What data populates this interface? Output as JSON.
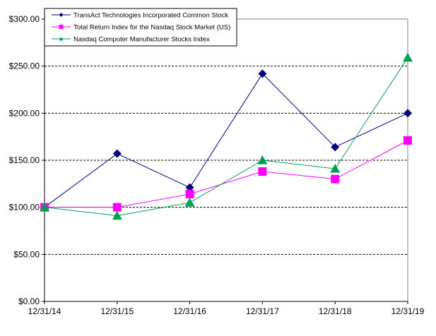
{
  "chart_data": {
    "type": "line",
    "title": "",
    "xlabel": "",
    "ylabel": "",
    "categories": [
      "12/31/14",
      "12/31/15",
      "12/31/16",
      "12/31/17",
      "12/31/18",
      "12/31/19"
    ],
    "ylim": [
      0,
      300
    ],
    "yticks": [
      0,
      50,
      100,
      150,
      200,
      250,
      300
    ],
    "ytick_labels": [
      "$0.00",
      "$50.00",
      "$100.00",
      "$150.00",
      "$200.00",
      "$250.00",
      "$300.00"
    ],
    "grid": "horizontal dashed",
    "legend_position": "top-left",
    "series": [
      {
        "name": "TransAct Technologies Incorporated Common Stock",
        "color": "#000080",
        "marker": "diamond",
        "values": [
          100,
          157,
          121,
          242,
          164,
          200
        ]
      },
      {
        "name": "Total Return Index for the Nasdaq Stock Market (US)",
        "color": "#FF00FF",
        "marker": "square",
        "values": [
          100,
          100,
          114,
          138,
          130,
          171
        ]
      },
      {
        "name": "Nasdaq Computer Manufacturer Stocks Index",
        "color": "#00A050",
        "marker": "triangle",
        "values": [
          100,
          91,
          105,
          150,
          141,
          259
        ]
      }
    ]
  }
}
